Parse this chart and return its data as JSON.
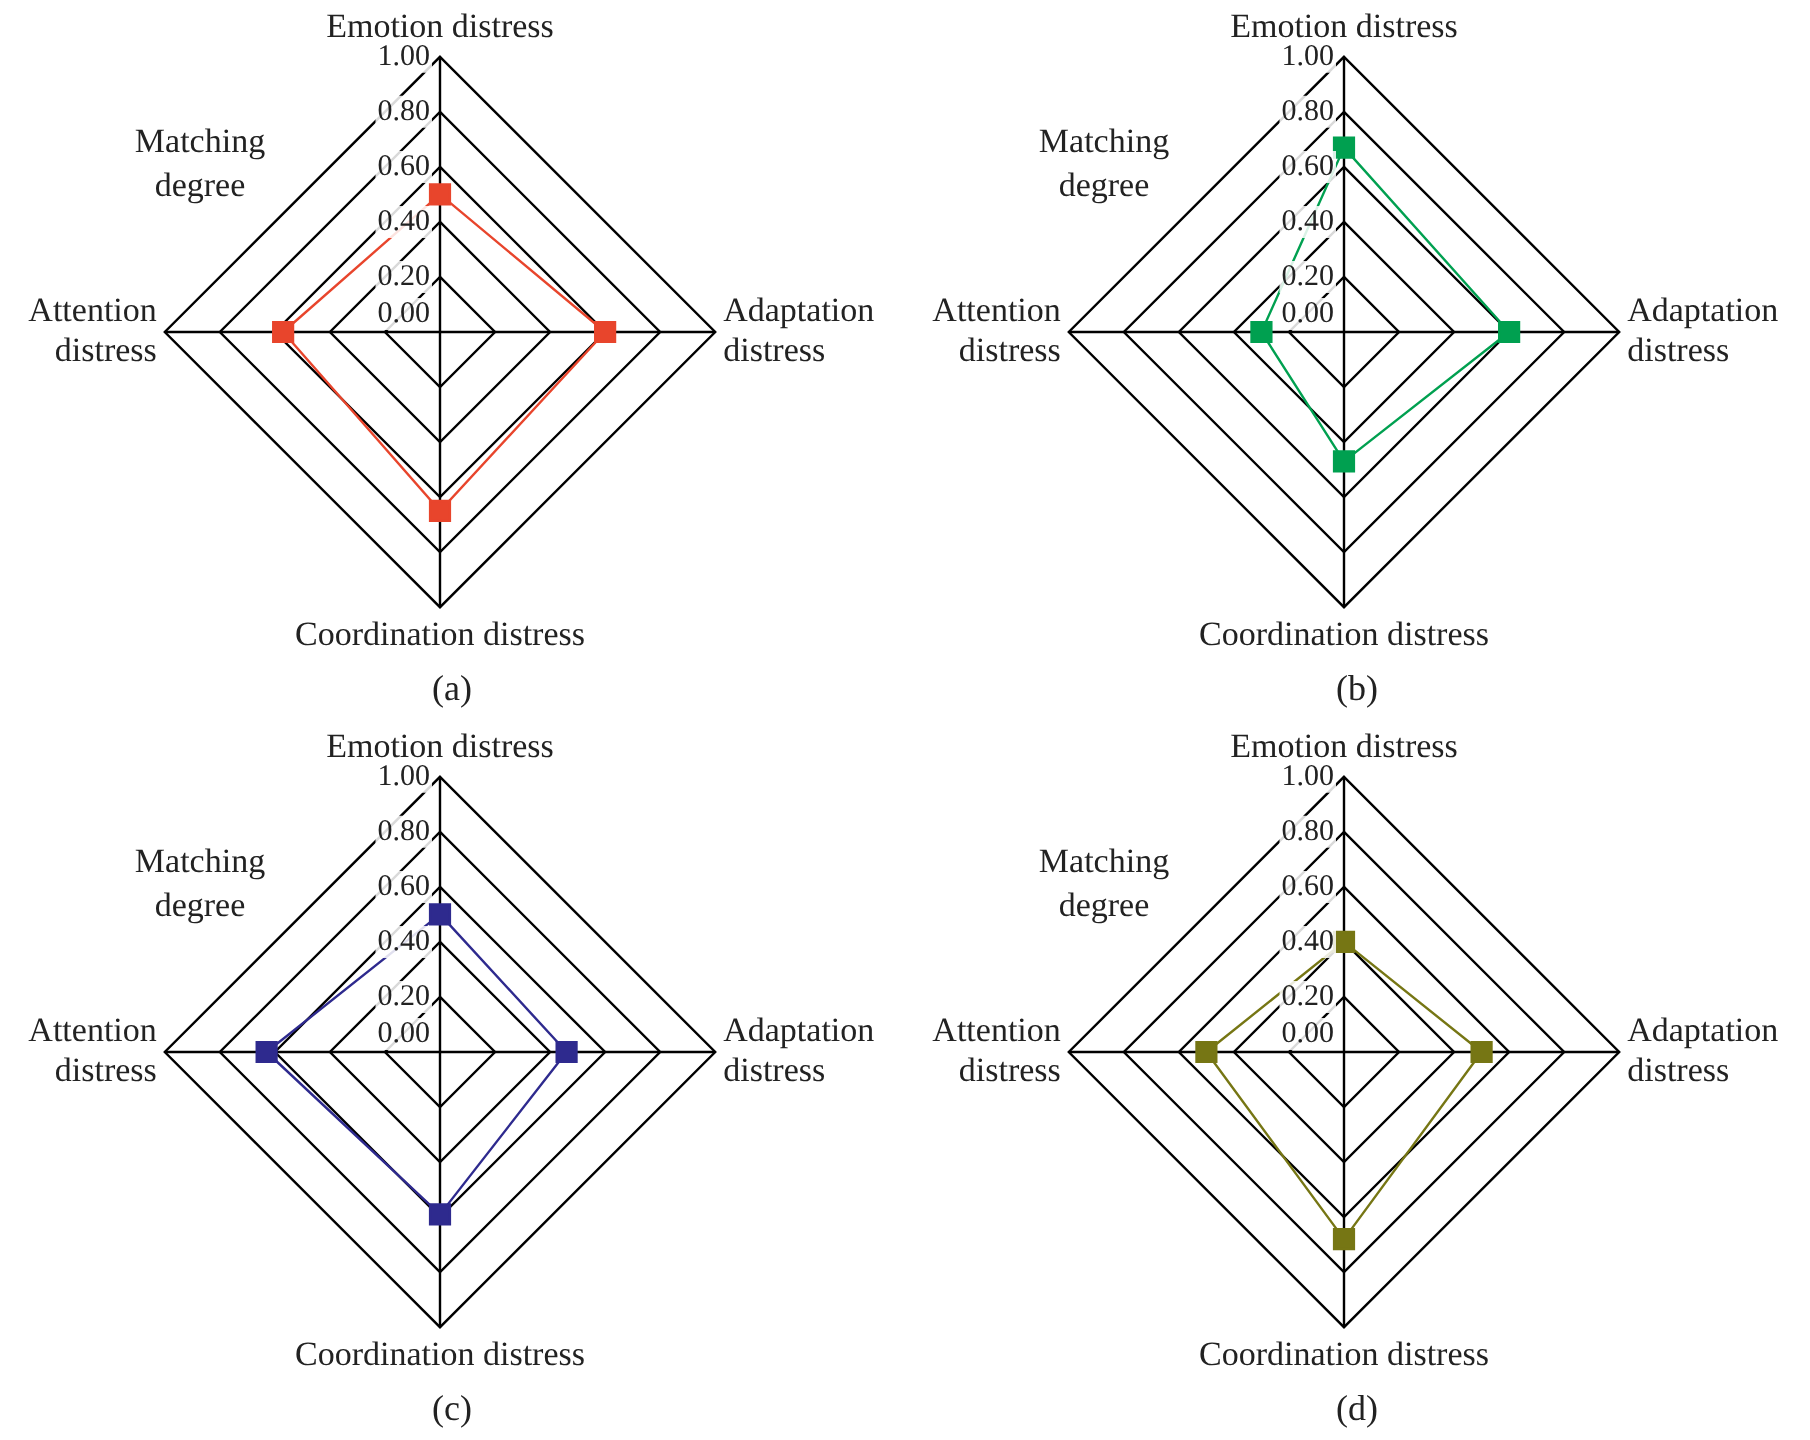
{
  "chart_data": [
    {
      "type": "radar",
      "title": "(a)",
      "ylabel": "Matching degree",
      "categories": [
        "Emotion distress",
        "Adaptation distress",
        "Coordination distress",
        "Attention distress"
      ],
      "series": [
        {
          "color": "#e8452c",
          "values": [
            0.5,
            0.6,
            0.65,
            0.57
          ]
        }
      ],
      "ylim": [
        0,
        1
      ],
      "yticks": [
        {
          "value": 0,
          "label": "0.00"
        },
        {
          "value": 0.2,
          "label": "0.20"
        },
        {
          "value": 0.4,
          "label": "0.40"
        },
        {
          "value": 0.6,
          "label": "0.60"
        },
        {
          "value": 0.8,
          "label": "0.80"
        },
        {
          "value": 1,
          "label": "1.00"
        }
      ],
      "grid": true,
      "legend": false,
      "marker": "square"
    },
    {
      "type": "radar",
      "title": "(b)",
      "ylabel": "Matching degree",
      "categories": [
        "Emotion distress",
        "Adaptation distress",
        "Coordination distress",
        "Attention distress"
      ],
      "series": [
        {
          "color": "#00a050",
          "values": [
            0.67,
            0.6,
            0.47,
            0.3
          ]
        }
      ],
      "ylim": [
        0,
        1
      ],
      "yticks": [
        {
          "value": 0,
          "label": "0.00"
        },
        {
          "value": 0.2,
          "label": "0.20"
        },
        {
          "value": 0.4,
          "label": "0.40"
        },
        {
          "value": 0.6,
          "label": "0.60"
        },
        {
          "value": 0.8,
          "label": "0.80"
        },
        {
          "value": 1,
          "label": "1.00"
        }
      ],
      "grid": true,
      "legend": false,
      "marker": "square"
    },
    {
      "type": "radar",
      "title": "(c)",
      "ylabel": "Matching degree",
      "categories": [
        "Emotion distress",
        "Adaptation distress",
        "Coordination distress",
        "Attention distress"
      ],
      "series": [
        {
          "color": "#2e2a8e",
          "values": [
            0.5,
            0.46,
            0.59,
            0.63
          ]
        }
      ],
      "ylim": [
        0,
        1
      ],
      "yticks": [
        {
          "value": 0,
          "label": "0.00"
        },
        {
          "value": 0.2,
          "label": "0.20"
        },
        {
          "value": 0.4,
          "label": "0.40"
        },
        {
          "value": 0.6,
          "label": "0.60"
        },
        {
          "value": 0.8,
          "label": "0.80"
        },
        {
          "value": 1,
          "label": "1.00"
        }
      ],
      "grid": true,
      "legend": false,
      "marker": "square"
    },
    {
      "type": "radar",
      "title": "(d)",
      "ylabel": "Matching degree",
      "categories": [
        "Emotion distress",
        "Adaptation distress",
        "Coordination distress",
        "Attention distress"
      ],
      "series": [
        {
          "color": "#767614",
          "values": [
            0.4,
            0.5,
            0.68,
            0.5
          ]
        }
      ],
      "ylim": [
        0,
        1
      ],
      "yticks": [
        {
          "value": 0,
          "label": "0.00"
        },
        {
          "value": 0.2,
          "label": "0.20"
        },
        {
          "value": 0.4,
          "label": "0.40"
        },
        {
          "value": 0.6,
          "label": "0.60"
        },
        {
          "value": 0.8,
          "label": "0.80"
        },
        {
          "value": 1,
          "label": "1.00"
        }
      ],
      "grid": true,
      "legend": false,
      "marker": "square"
    }
  ]
}
